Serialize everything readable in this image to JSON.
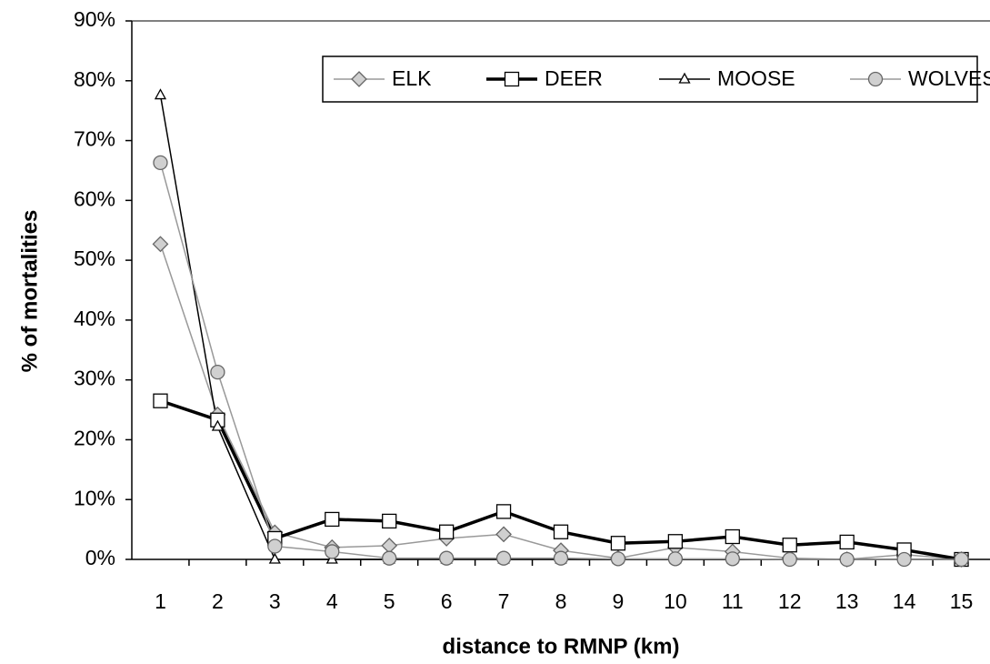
{
  "chart_data": {
    "type": "line",
    "xlabel": "distance to RMNP (km)",
    "ylabel": "% of mortalities",
    "categories": [
      "1",
      "2",
      "3",
      "4",
      "5",
      "6",
      "7",
      "8",
      "9",
      "10",
      "11",
      "12",
      "13",
      "14",
      "15"
    ],
    "series": [
      {
        "name": "ELK",
        "color": "#999999",
        "marker": "diamond",
        "values": [
          52.7,
          24.2,
          4.5,
          2.0,
          2.3,
          3.5,
          4.2,
          1.5,
          0.2,
          2.0,
          1.3,
          0.2,
          0,
          0.8,
          0
        ]
      },
      {
        "name": "DEER",
        "color": "#000000",
        "marker": "square",
        "values": [
          26.5,
          23.3,
          3.5,
          6.7,
          6.4,
          4.6,
          8.0,
          4.6,
          2.7,
          3.0,
          3.8,
          2.4,
          2.9,
          1.6,
          0
        ]
      },
      {
        "name": "MOOSE",
        "color": "#000000",
        "marker": "triangle",
        "values": [
          77.6,
          22.2,
          0,
          0,
          0,
          0,
          0,
          0,
          0,
          0,
          0,
          0,
          0,
          0,
          0
        ]
      },
      {
        "name": "WOLVES",
        "color": "#999999",
        "marker": "circle",
        "values": [
          66.3,
          31.3,
          2.2,
          1.3,
          0.2,
          0.2,
          0.2,
          0.2,
          0.1,
          0.1,
          0.1,
          0,
          0,
          0,
          0
        ]
      }
    ],
    "ylim": [
      0,
      90
    ],
    "yticks": [
      {
        "value": 0,
        "label": "0%"
      },
      {
        "value": 10,
        "label": "10%"
      },
      {
        "value": 20,
        "label": "20%"
      },
      {
        "value": 30,
        "label": "30%"
      },
      {
        "value": 40,
        "label": "40%"
      },
      {
        "value": 50,
        "label": "50%"
      },
      {
        "value": 60,
        "label": "60%"
      },
      {
        "value": 70,
        "label": "70%"
      },
      {
        "value": 80,
        "label": "80%"
      },
      {
        "value": 90,
        "label": "90%"
      }
    ],
    "grid": false,
    "legend": "top-right"
  }
}
